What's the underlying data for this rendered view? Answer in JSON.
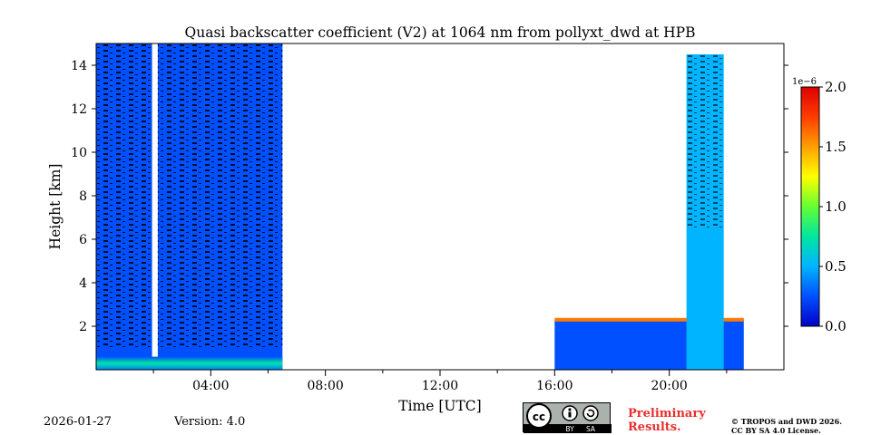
{
  "chart_data": {
    "type": "heatmap",
    "title": "Quasi backscatter coefficient (V2) at 1064 nm from pollyxt_dwd at HPB",
    "xlabel": "Time [UTC]",
    "ylabel": "Height [km]",
    "xlim": [
      0,
      24
    ],
    "ylim": [
      0,
      15
    ],
    "x_ticks": [
      {
        "value": 4,
        "label": "04:00"
      },
      {
        "value": 8,
        "label": "08:00"
      },
      {
        "value": 12,
        "label": "12:00"
      },
      {
        "value": 16,
        "label": "16:00"
      },
      {
        "value": 20,
        "label": "20:00"
      }
    ],
    "y_ticks": [
      {
        "value": 2,
        "label": "2"
      },
      {
        "value": 4,
        "label": "4"
      },
      {
        "value": 6,
        "label": "6"
      },
      {
        "value": 8,
        "label": "8"
      },
      {
        "value": 10,
        "label": "10"
      },
      {
        "value": 12,
        "label": "12"
      },
      {
        "value": 14,
        "label": "14"
      }
    ],
    "colorbar": {
      "min": 0.0,
      "max": 2.0,
      "scale_label": "1e−6",
      "ticks": [
        {
          "value": 0.0,
          "label": "0.0"
        },
        {
          "value": 0.5,
          "label": "0.5"
        },
        {
          "value": 1.0,
          "label": "1.0"
        },
        {
          "value": 1.5,
          "label": "1.5"
        },
        {
          "value": 2.0,
          "label": "2.0"
        }
      ],
      "colormap": [
        "#0000c8",
        "#0050ff",
        "#00b4ff",
        "#00e6a0",
        "#64ff32",
        "#ffff00",
        "#ffa000",
        "#ff3c00",
        "#dc0000"
      ]
    },
    "regions": [
      {
        "name": "morning-column-a",
        "time_start": 0.0,
        "time_end": 1.95,
        "height_top": 15.0,
        "level": 0.08
      },
      {
        "name": "morning-column-b",
        "time_start": 2.15,
        "time_end": 6.5,
        "height_top": 15.0,
        "level": 0.08
      },
      {
        "name": "evening-boundary-layer",
        "time_start": 16.0,
        "time_end": 22.6,
        "height_top": 2.3,
        "level": 0.1
      },
      {
        "name": "evening-cloud",
        "time_start": 20.6,
        "time_end": 21.9,
        "height_top": 14.5,
        "level": 0.3
      },
      {
        "name": "surface-layer",
        "time_start": 0.0,
        "time_end": 6.5,
        "height_top": 0.6,
        "level": 0.4
      }
    ],
    "data_gaps": [
      {
        "time_start": 1.95,
        "time_end": 2.15
      },
      {
        "time_start": 6.5,
        "time_end": 16.0
      }
    ]
  },
  "footer": {
    "date": "2026-01-27",
    "version": "Version: 4.0",
    "license_badge": {
      "by": "BY",
      "sa": "SA"
    },
    "preliminary": [
      "Preliminary",
      "Results."
    ],
    "copyright": [
      "© TROPOS and DWD 2026.",
      "CC BY SA 4.0 License."
    ]
  }
}
